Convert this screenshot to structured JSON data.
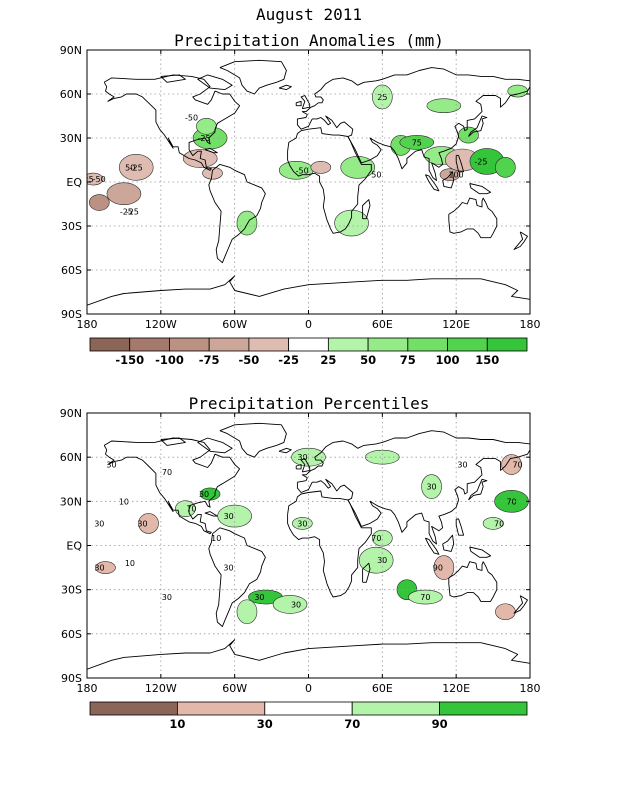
{
  "header": {
    "title": "August 2011"
  },
  "chart_data": [
    {
      "type": "heatmap",
      "title": "Precipitation Anomalies (mm)",
      "projection": "equirectangular",
      "xlim": [
        -180,
        180
      ],
      "ylim": [
        -90,
        90
      ],
      "grid": true,
      "x_ticks": [
        "180",
        "120W",
        "60W",
        "0",
        "60E",
        "120E",
        "180"
      ],
      "y_ticks": [
        "90N",
        "60N",
        "30N",
        "EQ",
        "30S",
        "60S",
        "90S"
      ],
      "colorbar": {
        "colors": [
          "#8b6558",
          "#a57a6d",
          "#bb9183",
          "#cca699",
          "#dfbcb1",
          "#ffffff",
          "#b4f3aa",
          "#94eb88",
          "#72e067",
          "#52d34d",
          "#34c53a"
        ],
        "labels": [
          "-150",
          "-100",
          "-75",
          "-50",
          "-25",
          "25",
          "50",
          "75",
          "100",
          "150"
        ]
      },
      "contour_labels": [
        "-25",
        "-25",
        "-25",
        "-25",
        "-50",
        "-50",
        "50",
        "75",
        "100",
        "-25",
        "25",
        "-50",
        "50",
        "-25"
      ],
      "regions": [
        {
          "lon": -175,
          "lat": 2,
          "value": -50
        },
        {
          "lon": -150,
          "lat": -8,
          "value": -75
        },
        {
          "lon": -170,
          "lat": -14,
          "value": -100
        },
        {
          "lon": -140,
          "lat": 10,
          "value": -50
        },
        {
          "lon": -130,
          "lat": 8,
          "value": -25
        },
        {
          "lon": -110,
          "lat": 8,
          "value": -25
        },
        {
          "lon": -148,
          "lat": -20,
          "value": -25
        },
        {
          "lon": -88,
          "lat": 16,
          "value": -50
        },
        {
          "lon": -78,
          "lat": 6,
          "value": -50
        },
        {
          "lon": -80,
          "lat": 30,
          "value": 75
        },
        {
          "lon": -83,
          "lat": 38,
          "value": 50
        },
        {
          "lon": -95,
          "lat": 29,
          "value": -25
        },
        {
          "lon": -95,
          "lat": 44,
          "value": -25
        },
        {
          "lon": -55,
          "lat": 55,
          "value": -25
        },
        {
          "lon": -50,
          "lat": -28,
          "value": 50
        },
        {
          "lon": -10,
          "lat": 8,
          "value": 50
        },
        {
          "lon": 10,
          "lat": 10,
          "value": -50
        },
        {
          "lon": 40,
          "lat": 10,
          "value": 50
        },
        {
          "lon": 60,
          "lat": 5,
          "value": -25
        },
        {
          "lon": 35,
          "lat": -28,
          "value": 25
        },
        {
          "lon": 75,
          "lat": 25,
          "value": 75
        },
        {
          "lon": 88,
          "lat": 27,
          "value": 100
        },
        {
          "lon": 100,
          "lat": 28,
          "value": -25
        },
        {
          "lon": 108,
          "lat": 18,
          "value": 50
        },
        {
          "lon": 115,
          "lat": 5,
          "value": -75
        },
        {
          "lon": 125,
          "lat": 15,
          "value": -50
        },
        {
          "lon": 130,
          "lat": 32,
          "value": 75
        },
        {
          "lon": 145,
          "lat": 14,
          "value": 150
        },
        {
          "lon": 160,
          "lat": 10,
          "value": 100
        },
        {
          "lon": 110,
          "lat": 52,
          "value": 50
        },
        {
          "lon": 60,
          "lat": 58,
          "value": 25
        },
        {
          "lon": 130,
          "lat": 60,
          "value": -25
        },
        {
          "lon": 170,
          "lat": 62,
          "value": 50
        }
      ]
    },
    {
      "type": "heatmap",
      "title": "Precipitation Percentiles",
      "projection": "equirectangular",
      "xlim": [
        -180,
        180
      ],
      "ylim": [
        -90,
        90
      ],
      "grid": true,
      "x_ticks": [
        "180",
        "120W",
        "60W",
        "0",
        "60E",
        "120E",
        "180"
      ],
      "y_ticks": [
        "90N",
        "60N",
        "30N",
        "EQ",
        "30S",
        "60S",
        "90S"
      ],
      "colorbar": {
        "colors": [
          "#8b6558",
          "#e2b8ab",
          "#ffffff",
          "#b4f3aa",
          "#34c53a"
        ],
        "labels": [
          "10",
          "30",
          "70",
          "90"
        ]
      },
      "contour_labels": [
        "30",
        "10",
        "30",
        "30",
        "30",
        "30",
        "70",
        "70",
        "70",
        "30",
        "30",
        "10",
        "30",
        "70",
        "70",
        "30",
        "30",
        "30",
        "90",
        "70",
        "70",
        "30",
        "30",
        "30",
        "30",
        "10"
      ],
      "regions": [
        {
          "lon": -165,
          "lat": -15,
          "value": 10
        },
        {
          "lon": -150,
          "lat": -12,
          "value": 30
        },
        {
          "lon": -170,
          "lat": 15,
          "value": 30
        },
        {
          "lon": -150,
          "lat": 30,
          "value": 30
        },
        {
          "lon": -130,
          "lat": 15,
          "value": 10
        },
        {
          "lon": -120,
          "lat": -35,
          "value": 30
        },
        {
          "lon": -165,
          "lat": 55,
          "value": 30
        },
        {
          "lon": -115,
          "lat": 50,
          "value": 30
        },
        {
          "lon": -80,
          "lat": 35,
          "value": 90
        },
        {
          "lon": -60,
          "lat": 20,
          "value": 70
        },
        {
          "lon": -100,
          "lat": 25,
          "value": 70
        },
        {
          "lon": -75,
          "lat": 5,
          "value": 30
        },
        {
          "lon": -65,
          "lat": -15,
          "value": 30
        },
        {
          "lon": -35,
          "lat": -35,
          "value": 90
        },
        {
          "lon": -50,
          "lat": -45,
          "value": 70
        },
        {
          "lon": -15,
          "lat": -40,
          "value": 70
        },
        {
          "lon": -5,
          "lat": 15,
          "value": 70
        },
        {
          "lon": 30,
          "lat": 5,
          "value": 30
        },
        {
          "lon": 60,
          "lat": 5,
          "value": 70
        },
        {
          "lon": 55,
          "lat": -10,
          "value": 70
        },
        {
          "lon": 80,
          "lat": -30,
          "value": 90
        },
        {
          "lon": 95,
          "lat": -35,
          "value": 70
        },
        {
          "lon": 110,
          "lat": -15,
          "value": 10
        },
        {
          "lon": 115,
          "lat": -40,
          "value": 30
        },
        {
          "lon": 150,
          "lat": 15,
          "value": 70
        },
        {
          "lon": 165,
          "lat": 30,
          "value": 90
        },
        {
          "lon": 160,
          "lat": -45,
          "value": 10
        },
        {
          "lon": 130,
          "lat": 55,
          "value": 30
        },
        {
          "lon": 165,
          "lat": 55,
          "value": 10
        },
        {
          "lon": 60,
          "lat": 60,
          "value": 70
        },
        {
          "lon": 100,
          "lat": 40,
          "value": 70
        },
        {
          "lon": 0,
          "lat": 60,
          "value": 70
        }
      ]
    }
  ]
}
